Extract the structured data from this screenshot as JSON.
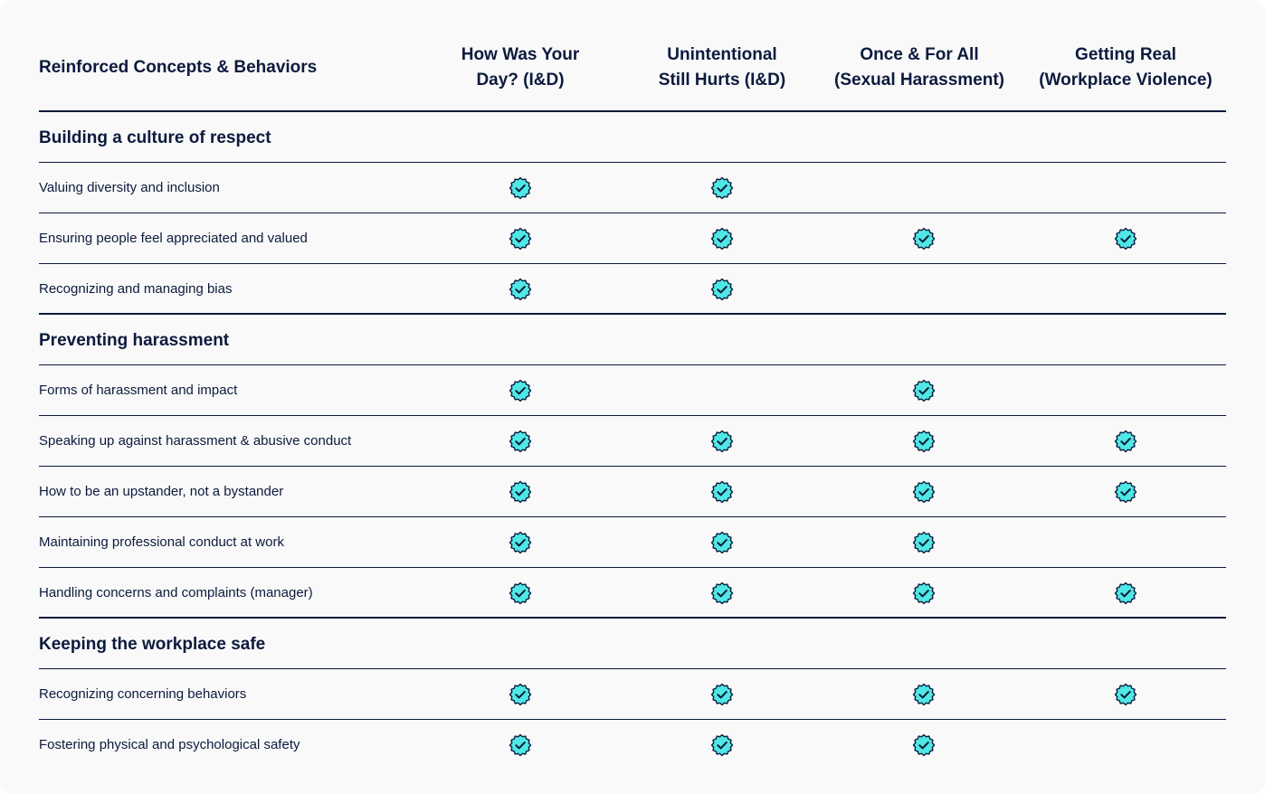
{
  "table": {
    "concepts_header": "Reinforced Concepts & Behaviors",
    "columns": [
      {
        "line1": "How Was Your",
        "line2": "Day? (I&D)"
      },
      {
        "line1": "Unintentional",
        "line2": "Still Hurts (I&D)"
      },
      {
        "line1": "Once & For All",
        "line2": "(Sexual Harassment)"
      },
      {
        "line1": "Getting Real",
        "line2": "(Workplace Violence)"
      }
    ],
    "check_icon": "verified-badge-check-icon",
    "colors": {
      "badge_fill": "#4fe8e4",
      "badge_stroke": "#0c1a3d",
      "text": "#0c1a3d",
      "background": "#f9f9f9"
    },
    "sections": [
      {
        "title": "Building a culture of respect",
        "rows": [
          {
            "label": "Valuing diversity and inclusion",
            "checks": [
              true,
              true,
              false,
              false
            ]
          },
          {
            "label": "Ensuring people feel appreciated and valued",
            "checks": [
              true,
              true,
              true,
              true
            ]
          },
          {
            "label": "Recognizing and managing bias",
            "checks": [
              true,
              true,
              false,
              false
            ]
          }
        ]
      },
      {
        "title": "Preventing harassment",
        "rows": [
          {
            "label": "Forms of harassment and impact",
            "checks": [
              true,
              false,
              true,
              false
            ]
          },
          {
            "label": "Speaking up against harassment & abusive conduct",
            "checks": [
              true,
              true,
              true,
              true
            ]
          },
          {
            "label": "How to be an upstander, not a bystander",
            "checks": [
              true,
              true,
              true,
              true
            ]
          },
          {
            "label": "Maintaining professional conduct at work",
            "checks": [
              true,
              true,
              true,
              false
            ]
          },
          {
            "label": "Handling concerns and complaints (manager)",
            "checks": [
              true,
              true,
              true,
              true
            ]
          }
        ]
      },
      {
        "title": "Keeping the workplace safe",
        "rows": [
          {
            "label": "Recognizing concerning behaviors",
            "checks": [
              true,
              true,
              true,
              true
            ]
          },
          {
            "label": "Fostering physical and psychological safety",
            "checks": [
              true,
              true,
              true,
              false
            ]
          }
        ]
      }
    ]
  }
}
